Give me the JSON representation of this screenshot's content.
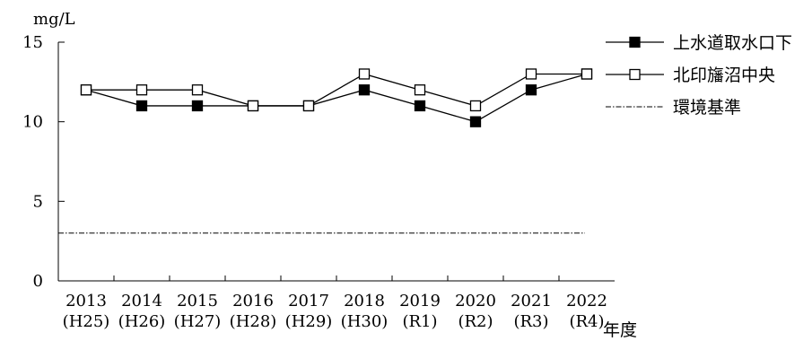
{
  "chart_data": {
    "type": "line",
    "unit_label": "mg/L",
    "x_axis_title": "年度",
    "categories": [
      "2013",
      "2014",
      "2015",
      "2016",
      "2017",
      "2018",
      "2019",
      "2020",
      "2021",
      "2022"
    ],
    "category_sublabels": [
      "(H25)",
      "(H26)",
      "(H27)",
      "(H28)",
      "(H29)",
      "(H30)",
      "(R1)",
      "(R2)",
      "(R3)",
      "(R4)"
    ],
    "y_ticks": [
      0,
      5,
      10,
      15
    ],
    "ylim": [
      0,
      15
    ],
    "series": [
      {
        "name": "上水道取水口下",
        "marker": "filled-square",
        "color": "#000000",
        "values": [
          12,
          11,
          11,
          11,
          11,
          12,
          11,
          10,
          12,
          13
        ]
      },
      {
        "name": "北印旛沼中央",
        "marker": "open-square",
        "color": "#000000",
        "values": [
          12,
          12,
          12,
          11,
          11,
          13,
          12,
          11,
          13,
          13
        ]
      }
    ],
    "reference_line": {
      "name": "環境基準",
      "value": 3,
      "style": "dash-dot"
    },
    "legend_position": "top-right",
    "grid": false
  }
}
